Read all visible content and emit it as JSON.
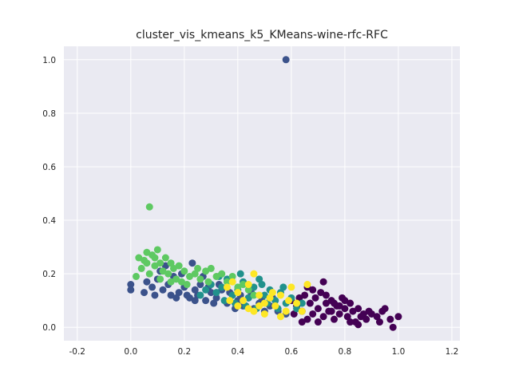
{
  "chart_data": {
    "type": "scatter",
    "title": "cluster_vis_kmeans_k5_KMeans-wine-rfc-RFC",
    "xlabel": "",
    "ylabel": "",
    "xlim": [
      -0.25,
      1.23
    ],
    "ylim": [
      -0.05,
      1.05
    ],
    "xticks": [
      -0.2,
      0.0,
      0.2,
      0.4,
      0.6,
      0.8,
      1.0,
      1.2
    ],
    "yticks": [
      0.0,
      0.2,
      0.4,
      0.6,
      0.8,
      1.0
    ],
    "grid": true,
    "legend": "none",
    "background": "#eaeaf2",
    "series": [
      {
        "color": "#440154",
        "points": [
          [
            0.6,
            0.1
          ],
          [
            0.62,
            0.08
          ],
          [
            0.64,
            0.06
          ],
          [
            0.65,
            0.12
          ],
          [
            0.66,
            0.15
          ],
          [
            0.67,
            0.09
          ],
          [
            0.68,
            0.05
          ],
          [
            0.69,
            0.11
          ],
          [
            0.7,
            0.07
          ],
          [
            0.71,
            0.13
          ],
          [
            0.72,
            0.04
          ],
          [
            0.73,
            0.09
          ],
          [
            0.74,
            0.06
          ],
          [
            0.75,
            0.1
          ],
          [
            0.76,
            0.03
          ],
          [
            0.77,
            0.08
          ],
          [
            0.78,
            0.05
          ],
          [
            0.79,
            0.11
          ],
          [
            0.8,
            0.07
          ],
          [
            0.81,
            0.04
          ],
          [
            0.82,
            0.09
          ],
          [
            0.83,
            0.06
          ],
          [
            0.84,
            0.02
          ],
          [
            0.85,
            0.07
          ],
          [
            0.86,
            0.04
          ],
          [
            0.87,
            0.05
          ],
          [
            0.88,
            0.03
          ],
          [
            0.9,
            0.05
          ],
          [
            0.92,
            0.04
          ],
          [
            0.94,
            0.06
          ],
          [
            0.95,
            0.07
          ],
          [
            0.97,
            0.03
          ],
          [
            0.98,
            0.0
          ],
          [
            1.0,
            0.04
          ],
          [
            0.72,
            0.17
          ],
          [
            0.68,
            0.14
          ],
          [
            0.63,
            0.11
          ],
          [
            0.7,
            0.02
          ],
          [
            0.75,
            0.06
          ],
          [
            0.78,
            0.08
          ],
          [
            0.82,
            0.02
          ],
          [
            0.66,
            0.03
          ],
          [
            0.61,
            0.05
          ],
          [
            0.64,
            0.02
          ],
          [
            0.73,
            0.12
          ],
          [
            0.76,
            0.09
          ],
          [
            0.8,
            0.1
          ],
          [
            0.85,
            0.01
          ],
          [
            0.89,
            0.06
          ],
          [
            0.93,
            0.02
          ]
        ]
      },
      {
        "color": "#3b528b",
        "points": [
          [
            0.58,
            1.0
          ],
          [
            0.0,
            0.16
          ],
          [
            0.0,
            0.14
          ],
          [
            0.05,
            0.13
          ],
          [
            0.08,
            0.15
          ],
          [
            0.1,
            0.18
          ],
          [
            0.12,
            0.14
          ],
          [
            0.14,
            0.16
          ],
          [
            0.15,
            0.12
          ],
          [
            0.16,
            0.19
          ],
          [
            0.18,
            0.13
          ],
          [
            0.2,
            0.15
          ],
          [
            0.22,
            0.11
          ],
          [
            0.24,
            0.14
          ],
          [
            0.25,
            0.12
          ],
          [
            0.26,
            0.16
          ],
          [
            0.28,
            0.1
          ],
          [
            0.3,
            0.13
          ],
          [
            0.32,
            0.11
          ],
          [
            0.34,
            0.14
          ],
          [
            0.36,
            0.09
          ],
          [
            0.38,
            0.12
          ],
          [
            0.4,
            0.1
          ],
          [
            0.42,
            0.08
          ],
          [
            0.44,
            0.11
          ],
          [
            0.46,
            0.07
          ],
          [
            0.48,
            0.09
          ],
          [
            0.5,
            0.06
          ],
          [
            0.52,
            0.08
          ],
          [
            0.55,
            0.06
          ],
          [
            0.58,
            0.05
          ],
          [
            0.11,
            0.21
          ],
          [
            0.13,
            0.23
          ],
          [
            0.19,
            0.2
          ],
          [
            0.23,
            0.24
          ],
          [
            0.27,
            0.19
          ],
          [
            0.06,
            0.17
          ],
          [
            0.09,
            0.12
          ],
          [
            0.17,
            0.11
          ],
          [
            0.21,
            0.12
          ],
          [
            0.29,
            0.15
          ],
          [
            0.33,
            0.16
          ],
          [
            0.37,
            0.13
          ],
          [
            0.41,
            0.12
          ],
          [
            0.45,
            0.13
          ],
          [
            0.49,
            0.1
          ],
          [
            0.53,
            0.11
          ],
          [
            0.24,
            0.1
          ],
          [
            0.31,
            0.09
          ],
          [
            0.39,
            0.07
          ]
        ]
      },
      {
        "color": "#21918c",
        "points": [
          [
            0.26,
            0.12
          ],
          [
            0.28,
            0.14
          ],
          [
            0.3,
            0.16
          ],
          [
            0.32,
            0.13
          ],
          [
            0.34,
            0.15
          ],
          [
            0.36,
            0.18
          ],
          [
            0.38,
            0.12
          ],
          [
            0.4,
            0.14
          ],
          [
            0.42,
            0.17
          ],
          [
            0.44,
            0.11
          ],
          [
            0.46,
            0.15
          ],
          [
            0.48,
            0.18
          ],
          [
            0.5,
            0.12
          ],
          [
            0.52,
            0.14
          ],
          [
            0.54,
            0.1
          ],
          [
            0.56,
            0.13
          ],
          [
            0.58,
            0.09
          ],
          [
            0.6,
            0.11
          ],
          [
            0.62,
            0.07
          ],
          [
            0.64,
            0.09
          ],
          [
            0.35,
            0.1
          ],
          [
            0.39,
            0.09
          ],
          [
            0.43,
            0.08
          ],
          [
            0.47,
            0.07
          ],
          [
            0.51,
            0.09
          ],
          [
            0.55,
            0.07
          ],
          [
            0.33,
            0.19
          ],
          [
            0.41,
            0.2
          ],
          [
            0.49,
            0.16
          ],
          [
            0.57,
            0.15
          ]
        ]
      },
      {
        "color": "#5ec962",
        "points": [
          [
            0.07,
            0.45
          ],
          [
            0.02,
            0.19
          ],
          [
            0.04,
            0.22
          ],
          [
            0.05,
            0.25
          ],
          [
            0.06,
            0.28
          ],
          [
            0.07,
            0.2
          ],
          [
            0.08,
            0.27
          ],
          [
            0.09,
            0.23
          ],
          [
            0.1,
            0.29
          ],
          [
            0.11,
            0.24
          ],
          [
            0.12,
            0.21
          ],
          [
            0.13,
            0.26
          ],
          [
            0.14,
            0.2
          ],
          [
            0.15,
            0.24
          ],
          [
            0.16,
            0.22
          ],
          [
            0.17,
            0.18
          ],
          [
            0.18,
            0.23
          ],
          [
            0.19,
            0.17
          ],
          [
            0.2,
            0.21
          ],
          [
            0.22,
            0.19
          ],
          [
            0.24,
            0.2
          ],
          [
            0.26,
            0.18
          ],
          [
            0.28,
            0.21
          ],
          [
            0.3,
            0.22
          ],
          [
            0.32,
            0.19
          ],
          [
            0.34,
            0.2
          ],
          [
            0.36,
            0.17
          ],
          [
            0.38,
            0.19
          ],
          [
            0.4,
            0.15
          ],
          [
            0.42,
            0.16
          ],
          [
            0.44,
            0.14
          ],
          [
            0.46,
            0.12
          ],
          [
            0.03,
            0.26
          ],
          [
            0.06,
            0.24
          ],
          [
            0.09,
            0.26
          ],
          [
            0.11,
            0.18
          ],
          [
            0.15,
            0.17
          ],
          [
            0.21,
            0.16
          ],
          [
            0.25,
            0.22
          ],
          [
            0.29,
            0.17
          ]
        ]
      },
      {
        "color": "#fde725",
        "points": [
          [
            0.36,
            0.15
          ],
          [
            0.38,
            0.17
          ],
          [
            0.4,
            0.13
          ],
          [
            0.42,
            0.1
          ],
          [
            0.44,
            0.16
          ],
          [
            0.46,
            0.2
          ],
          [
            0.48,
            0.12
          ],
          [
            0.5,
            0.09
          ],
          [
            0.52,
            0.11
          ],
          [
            0.54,
            0.08
          ],
          [
            0.56,
            0.12
          ],
          [
            0.58,
            0.06
          ],
          [
            0.6,
            0.15
          ],
          [
            0.62,
            0.09
          ],
          [
            0.64,
            0.06
          ],
          [
            0.4,
            0.08
          ],
          [
            0.46,
            0.06
          ],
          [
            0.5,
            0.05
          ],
          [
            0.56,
            0.04
          ],
          [
            0.66,
            0.16
          ],
          [
            0.44,
            0.07
          ],
          [
            0.53,
            0.13
          ],
          [
            0.59,
            0.1
          ],
          [
            0.37,
            0.1
          ],
          [
            0.48,
            0.08
          ]
        ]
      }
    ]
  }
}
